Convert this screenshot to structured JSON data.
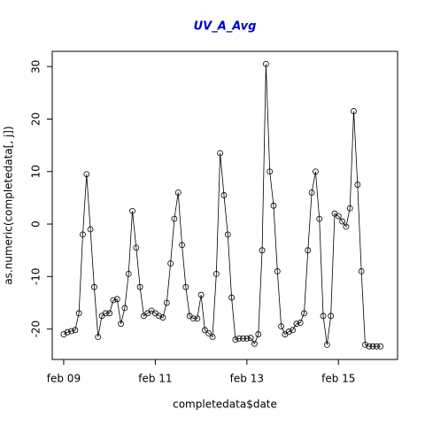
{
  "chart_data": {
    "type": "line",
    "title": "UV_A_Avg",
    "x_label": "completedata$date",
    "y_label": "as.numeric(completedata[, j])",
    "x": [
      0,
      0.0833,
      0.1667,
      0.25,
      0.3333,
      0.4167,
      0.5,
      0.5833,
      0.6667,
      0.75,
      0.8333,
      0.9167,
      1,
      1.0833,
      1.1667,
      1.25,
      1.3333,
      1.4167,
      1.5,
      1.5833,
      1.6667,
      1.75,
      1.8333,
      1.9167,
      2,
      2.0833,
      2.1667,
      2.25,
      2.3333,
      2.4167,
      2.5,
      2.5833,
      2.6667,
      2.75,
      2.8333,
      2.9167,
      3,
      3.0833,
      3.1667,
      3.25,
      3.3333,
      3.4167,
      3.5,
      3.5833,
      3.6667,
      3.75,
      3.8333,
      3.9167,
      4,
      4.0833,
      4.1667,
      4.25,
      4.3333,
      4.4167,
      4.5,
      4.5833,
      4.6667,
      4.75,
      4.8333,
      4.9167,
      5,
      5.0833,
      5.1667,
      5.25,
      5.3333,
      5.4167,
      5.5,
      5.5833,
      5.6667,
      5.75,
      5.8333,
      5.9167,
      6,
      6.0833,
      6.1667,
      6.25,
      6.3333,
      6.4167,
      6.5,
      6.5833,
      6.6667,
      6.75,
      6.8333,
      6.9167
    ],
    "series": [
      {
        "name": "UV_A_Avg",
        "color": "#000000",
        "values": [
          -21,
          -20.6,
          -20.4,
          -20.2,
          -17,
          -2,
          9.5,
          -1,
          -12,
          -21.5,
          -17.5,
          -17,
          -17,
          -14.5,
          -14.3,
          -19,
          -16,
          -9.5,
          2.5,
          -4.5,
          -12,
          -17.5,
          -17,
          -16.5,
          -17,
          -17.5,
          -17.8,
          -15,
          -7.5,
          1,
          6,
          -4,
          -12,
          -17.5,
          -18,
          -18,
          -13.5,
          -20.2,
          -20.8,
          -21.5,
          -9.5,
          13.5,
          5.5,
          -2,
          -14,
          -22,
          -21.8,
          -21.8,
          -21.8,
          -21.7,
          -22.8,
          -21,
          -5,
          30.5,
          10,
          3.5,
          -9,
          -19.5,
          -21,
          -20.5,
          -20.2,
          -19,
          -18.8,
          -17,
          -5,
          6,
          10,
          1,
          -17.5,
          -23,
          -17.5,
          2,
          1.5,
          0.5,
          -0.5,
          3,
          21.5,
          7.5,
          -9,
          -23,
          -23.3,
          -23.3,
          -23.3,
          -23.3
        ]
      }
    ],
    "xlim": [
      -0.25,
      7.29
    ],
    "xticks": [
      {
        "value": 0,
        "label": "feb 09"
      },
      {
        "value": 2,
        "label": "feb 11"
      },
      {
        "value": 4,
        "label": "feb 13"
      },
      {
        "value": 6,
        "label": "feb 15"
      }
    ],
    "ylim": [
      -25.8,
      32.9
    ],
    "yticks": [
      -20,
      -10,
      0,
      10,
      20,
      30
    ],
    "grid": false
  }
}
